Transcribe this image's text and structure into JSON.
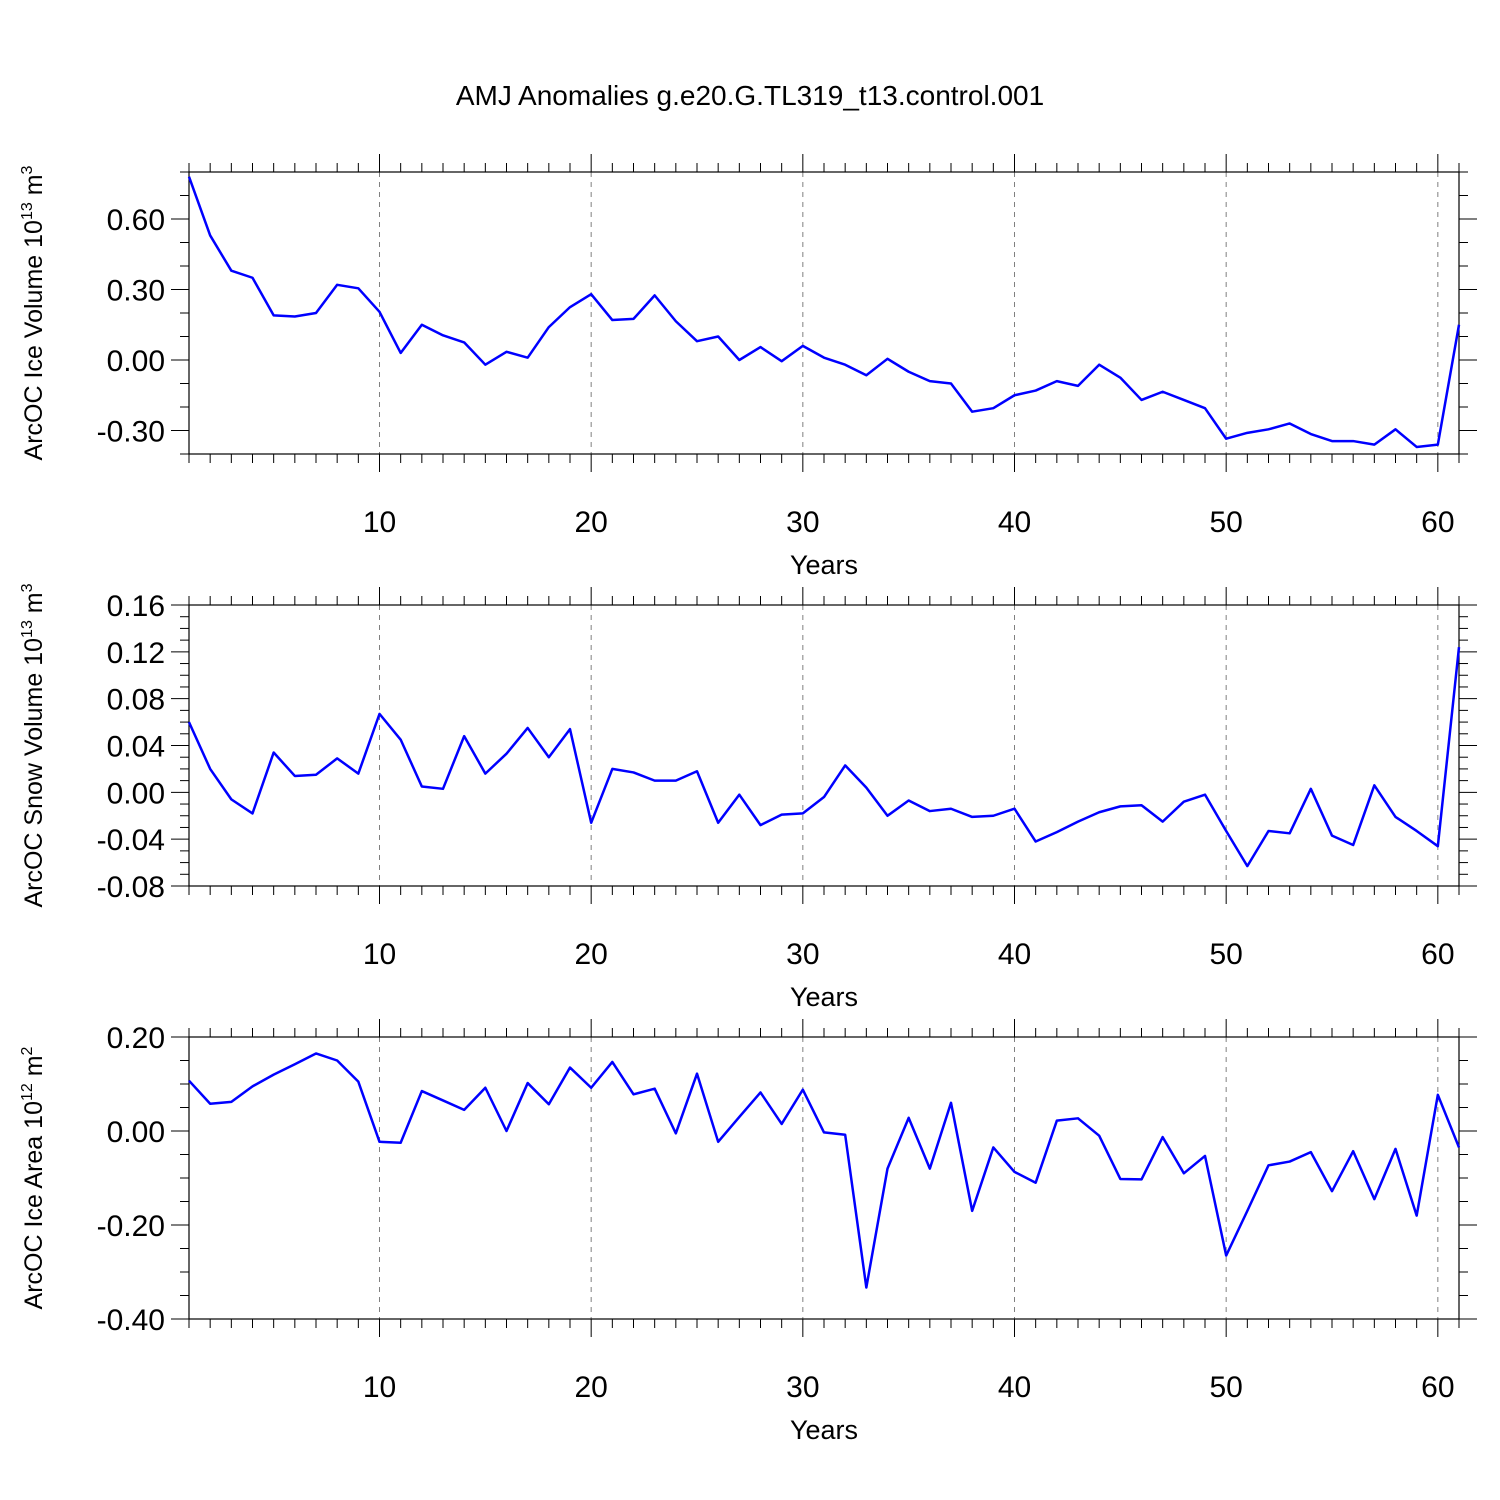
{
  "title": "AMJ Anomalies g.e20.G.TL319_t13.control.001",
  "chart_data": [
    {
      "type": "line",
      "ylabel_main": "ArcOC Ice Volume 10",
      "ylabel_exp1": "13",
      "ylabel_mid": " m",
      "ylabel_exp2": "3",
      "xlabel": "Years",
      "xlim": [
        1,
        61
      ],
      "ylim": [
        -0.4,
        0.8
      ],
      "xticks": [
        10,
        20,
        30,
        40,
        50,
        60
      ],
      "yticks": [
        -0.3,
        0.0,
        0.3,
        0.6
      ],
      "ytick_labels": [
        "-0.30",
        "0.00",
        "0.30",
        "0.60"
      ],
      "y_minor_step": 0.1,
      "color": "#0000ff",
      "series": [
        {
          "name": "ice_volume",
          "x_start": 1,
          "values": [
            0.78,
            0.53,
            0.38,
            0.35,
            0.19,
            0.185,
            0.2,
            0.32,
            0.305,
            0.205,
            0.03,
            0.15,
            0.105,
            0.075,
            -0.02,
            0.035,
            0.01,
            0.14,
            0.225,
            0.28,
            0.17,
            0.175,
            0.275,
            0.165,
            0.08,
            0.1,
            0.0,
            0.055,
            -0.005,
            0.06,
            0.01,
            -0.02,
            -0.065,
            0.005,
            -0.05,
            -0.09,
            -0.1,
            -0.22,
            -0.205,
            -0.15,
            -0.13,
            -0.09,
            -0.11,
            -0.02,
            -0.075,
            -0.17,
            -0.135,
            -0.17,
            -0.205,
            -0.335,
            -0.31,
            -0.295,
            -0.27,
            -0.315,
            -0.345,
            -0.345,
            -0.36,
            -0.295,
            -0.37,
            -0.36,
            0.15
          ]
        }
      ]
    },
    {
      "type": "line",
      "ylabel_main": "ArcOC Snow Volume 10",
      "ylabel_exp1": "13",
      "ylabel_mid": " m",
      "ylabel_exp2": "3",
      "xlabel": "Years",
      "xlim": [
        1,
        61
      ],
      "ylim": [
        -0.08,
        0.16
      ],
      "xticks": [
        10,
        20,
        30,
        40,
        50,
        60
      ],
      "yticks": [
        -0.08,
        -0.04,
        0.0,
        0.04,
        0.08,
        0.12,
        0.16
      ],
      "ytick_labels": [
        "-0.08",
        "-0.04",
        "0.00",
        "0.04",
        "0.08",
        "0.12",
        "0.16"
      ],
      "y_minor_step": 0.01,
      "color": "#0000ff",
      "series": [
        {
          "name": "snow_volume",
          "x_start": 1,
          "values": [
            0.06,
            0.02,
            -0.006,
            -0.018,
            0.034,
            0.014,
            0.015,
            0.029,
            0.016,
            0.067,
            0.045,
            0.005,
            0.003,
            0.048,
            0.016,
            0.033,
            0.055,
            0.03,
            0.054,
            -0.026,
            0.02,
            0.017,
            0.01,
            0.01,
            0.018,
            -0.026,
            -0.002,
            -0.028,
            -0.019,
            -0.018,
            -0.004,
            0.023,
            0.004,
            -0.02,
            -0.007,
            -0.016,
            -0.014,
            -0.021,
            -0.02,
            -0.014,
            -0.042,
            -0.034,
            -0.025,
            -0.017,
            -0.012,
            -0.011,
            -0.025,
            -0.008,
            -0.002,
            -0.033,
            -0.063,
            -0.033,
            -0.035,
            0.003,
            -0.037,
            -0.045,
            0.006,
            -0.021,
            -0.033,
            -0.046,
            0.124
          ]
        }
      ]
    },
    {
      "type": "line",
      "ylabel_main": "ArcOC Ice Area 10",
      "ylabel_exp1": "12",
      "ylabel_mid": " m",
      "ylabel_exp2": "2",
      "xlabel": "Years",
      "xlim": [
        1,
        61
      ],
      "ylim": [
        -0.4,
        0.2
      ],
      "xticks": [
        10,
        20,
        30,
        40,
        50,
        60
      ],
      "yticks": [
        -0.4,
        -0.2,
        0.0,
        0.2
      ],
      "ytick_labels": [
        "-0.40",
        "-0.20",
        "0.00",
        "0.20"
      ],
      "y_minor_step": 0.05,
      "color": "#0000ff",
      "series": [
        {
          "name": "ice_area",
          "x_start": 1,
          "values": [
            0.107,
            0.058,
            0.062,
            0.095,
            0.12,
            0.142,
            0.165,
            0.15,
            0.105,
            -0.023,
            -0.025,
            0.085,
            0.065,
            0.045,
            0.092,
            0.0,
            0.102,
            0.057,
            0.135,
            0.092,
            0.147,
            0.078,
            0.09,
            -0.005,
            0.122,
            -0.023,
            0.03,
            0.082,
            0.015,
            0.088,
            -0.003,
            -0.008,
            -0.333,
            -0.08,
            0.028,
            -0.08,
            0.06,
            -0.17,
            -0.035,
            -0.087,
            -0.11,
            0.022,
            0.027,
            -0.01,
            -0.102,
            -0.103,
            -0.013,
            -0.09,
            -0.053,
            -0.265,
            -0.17,
            -0.073,
            -0.065,
            -0.045,
            -0.128,
            -0.043,
            -0.145,
            -0.038,
            -0.18,
            0.077,
            -0.035
          ]
        }
      ]
    }
  ]
}
